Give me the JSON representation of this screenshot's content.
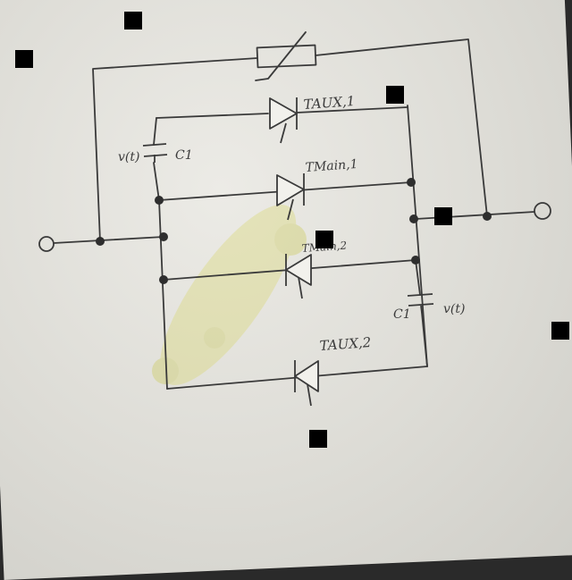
{
  "labels": {
    "t_aux_1": "TAUX,1",
    "t_main_1": "TMain,1",
    "t_main_2": "TMain,2",
    "t_aux_2": "TAUX,2",
    "vt_left": "v(t)",
    "c1_left": "C1",
    "c1_right": "C1",
    "vt_right": "v(t)"
  },
  "colors": {
    "ink": "#3a3a3a",
    "paper": "#e6e5e0",
    "stain": "#d8d66a",
    "mask": "#000000"
  },
  "icons": {
    "terminal_left": "terminal-circle-icon",
    "terminal_right": "terminal-circle-icon",
    "varistor": "varistor-icon",
    "thyristor": "thyristor-icon",
    "capacitor": "capacitor-icon"
  }
}
